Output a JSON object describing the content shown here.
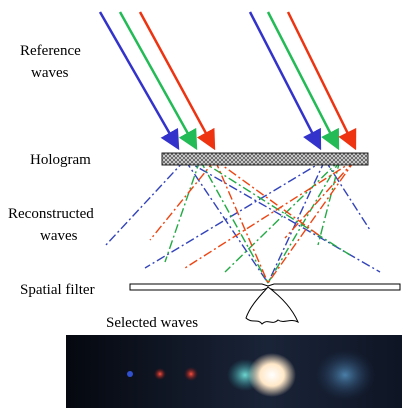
{
  "labels": {
    "reference_waves": [
      "Reference",
      "waves"
    ],
    "hologram": "Hologram",
    "reconstructed_waves": [
      "Reconstructed",
      "waves"
    ],
    "spatial_filter": "Spatial filter",
    "selected_waves": "Selected waves"
  }
}
